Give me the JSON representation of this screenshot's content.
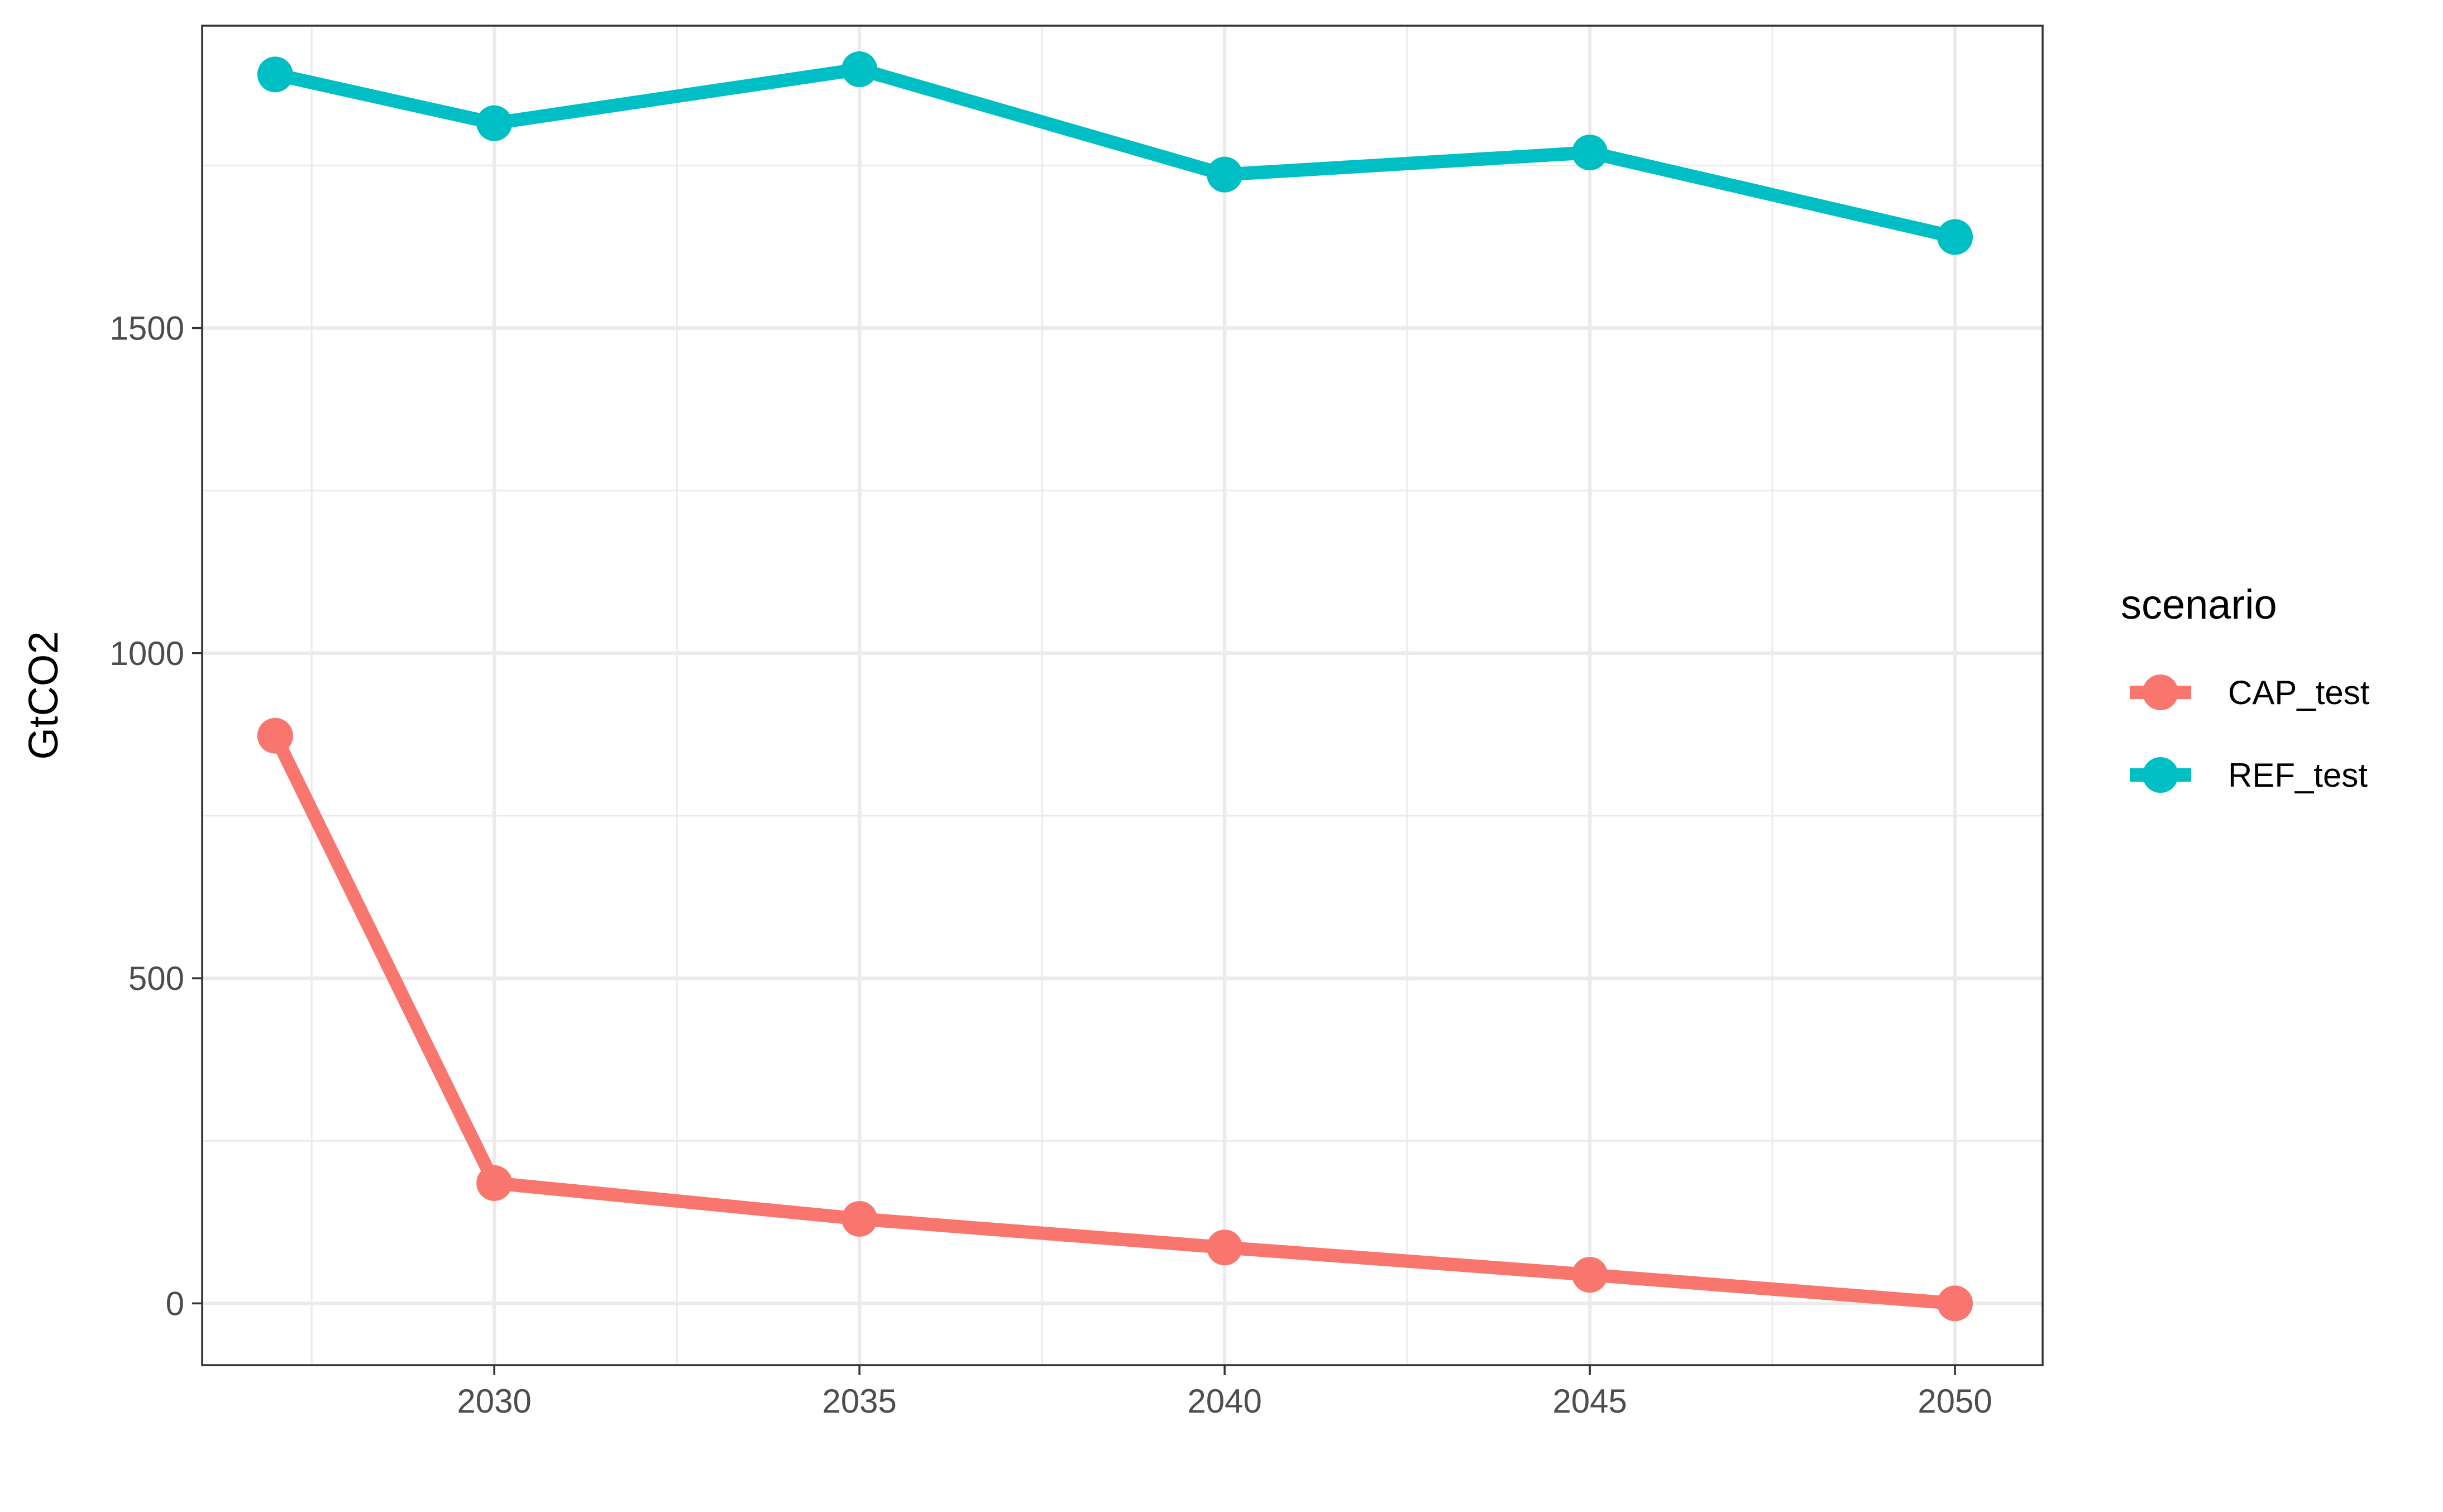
{
  "chart_data": {
    "type": "line",
    "title": "",
    "xlabel": "",
    "ylabel": "GtCO2",
    "x": [
      2027,
      2030,
      2035,
      2040,
      2045,
      2050
    ],
    "xlim": [
      2026.0,
      2051.2
    ],
    "ylim": [
      -95,
      1965
    ],
    "x_ticks": [
      2030,
      2035,
      2040,
      2045,
      2050
    ],
    "x_tick_labels": [
      "2030",
      "2035",
      "2040",
      "2045",
      "2050"
    ],
    "x_minor_ticks": [
      2027.5,
      2032.5,
      2037.5,
      2042.5,
      2047.5
    ],
    "y_ticks": [
      0,
      500,
      1000,
      1500
    ],
    "y_tick_labels": [
      "0",
      "500",
      "1000",
      "1500"
    ],
    "y_minor_ticks": [
      250,
      750,
      1250,
      1750
    ],
    "grid": true,
    "legend_title": "scenario",
    "legend_position": "right",
    "series": [
      {
        "name": "CAP_test",
        "color": "#F8766D",
        "values": [
          873,
          185,
          130,
          86,
          44,
          0
        ]
      },
      {
        "name": "REF_test",
        "color": "#00BFC4",
        "values": [
          1890,
          1815,
          1898,
          1736,
          1770,
          1640
        ]
      }
    ]
  }
}
